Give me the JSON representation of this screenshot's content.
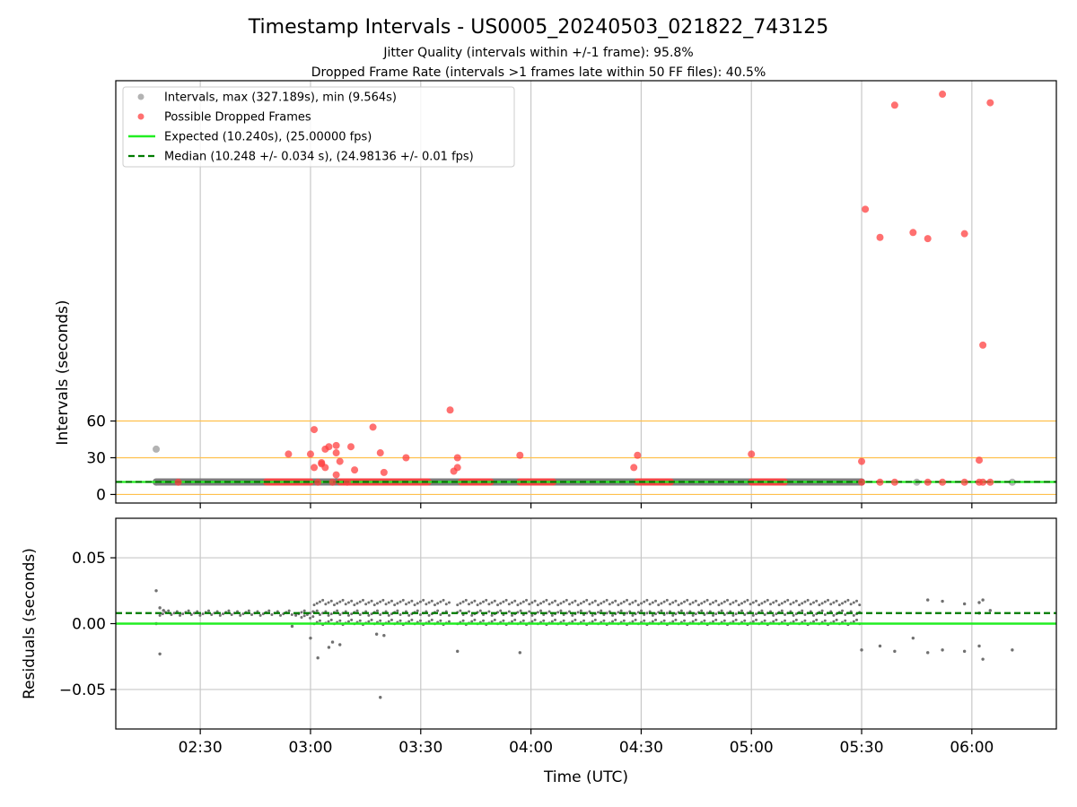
{
  "figure": {
    "title": "Timestamp Intervals - US0005_20240503_021822_743125",
    "subtitle_1": "Jitter Quality (intervals within +/-1 frame): 95.8%",
    "subtitle_2": "Dropped Frame Rate (intervals >1 frames late within 50 FF files): 40.5%",
    "xlabel": "Time (UTC)"
  },
  "colors": {
    "normal_points": "#808080",
    "dropped_points": "#ff4040",
    "expected_line": "#22ee22",
    "median_line": "#007a00",
    "threshold_lines": "#ffc04d",
    "grid": "#c8c8c8",
    "residual_points": "#707070"
  },
  "chart_data": [
    {
      "id": "intervals",
      "type": "scatter",
      "ylabel": "Intervals (seconds)",
      "xlim": [
        "02:07",
        "06:23"
      ],
      "ylim": [
        -7,
        338
      ],
      "x_ticks": [
        "02:30",
        "03:00",
        "03:30",
        "04:00",
        "04:30",
        "05:00",
        "05:30",
        "06:00"
      ],
      "y_ticks": [
        "0",
        "30",
        "60"
      ],
      "y_tick_values": [
        0,
        30,
        60
      ],
      "threshold_lines": [
        0,
        30,
        60
      ],
      "grid": true,
      "legend_position": "top-left",
      "legend": [
        "Intervals, max (327.189s), min (9.564s)",
        "Possible Dropped Frames",
        "Expected (10.240s), (25.00000 fps)",
        "Median (10.248 +/- 0.034 s), (24.98136 +/- 0.01 fps)"
      ],
      "expected": 10.24,
      "median": 10.248,
      "normal_bands": [
        [
          "02:18",
          "03:08"
        ],
        [
          "03:08",
          "05:30"
        ]
      ],
      "normal_points": [
        {
          "x": "02:18",
          "y": 37
        },
        {
          "x": "02:18",
          "y": 10
        },
        {
          "x": "05:45",
          "y": 10
        },
        {
          "x": "06:11",
          "y": 10
        }
      ],
      "dropped_bands": [
        [
          "02:48",
          "03:00"
        ],
        [
          "03:08",
          "03:32"
        ],
        [
          "03:41",
          "03:49"
        ],
        [
          "03:57",
          "04:06"
        ],
        [
          "04:29",
          "04:38"
        ],
        [
          "05:00",
          "05:09"
        ]
      ],
      "dropped_points": [
        {
          "x": "02:24",
          "y": 10
        },
        {
          "x": "02:54",
          "y": 33
        },
        {
          "x": "03:00",
          "y": 33
        },
        {
          "x": "03:01",
          "y": 53
        },
        {
          "x": "03:01",
          "y": 22
        },
        {
          "x": "03:02",
          "y": 10
        },
        {
          "x": "03:03",
          "y": 26
        },
        {
          "x": "03:03",
          "y": 25
        },
        {
          "x": "03:04",
          "y": 37
        },
        {
          "x": "03:04",
          "y": 22
        },
        {
          "x": "03:05",
          "y": 39
        },
        {
          "x": "03:06",
          "y": 10
        },
        {
          "x": "03:07",
          "y": 16
        },
        {
          "x": "03:07",
          "y": 34
        },
        {
          "x": "03:07",
          "y": 40
        },
        {
          "x": "03:08",
          "y": 27
        },
        {
          "x": "03:10",
          "y": 10
        },
        {
          "x": "03:11",
          "y": 39
        },
        {
          "x": "03:12",
          "y": 20
        },
        {
          "x": "03:17",
          "y": 55
        },
        {
          "x": "03:19",
          "y": 34
        },
        {
          "x": "03:20",
          "y": 18
        },
        {
          "x": "03:26",
          "y": 30
        },
        {
          "x": "03:38",
          "y": 69
        },
        {
          "x": "03:39",
          "y": 19
        },
        {
          "x": "03:40",
          "y": 22
        },
        {
          "x": "03:40",
          "y": 30
        },
        {
          "x": "03:57",
          "y": 32
        },
        {
          "x": "04:28",
          "y": 22
        },
        {
          "x": "04:29",
          "y": 32
        },
        {
          "x": "05:00",
          "y": 33
        },
        {
          "x": "05:30",
          "y": 27
        },
        {
          "x": "05:30",
          "y": 10
        },
        {
          "x": "05:31",
          "y": 233
        },
        {
          "x": "05:35",
          "y": 10
        },
        {
          "x": "05:35",
          "y": 210
        },
        {
          "x": "05:39",
          "y": 10
        },
        {
          "x": "05:39",
          "y": 318
        },
        {
          "x": "05:44",
          "y": 214
        },
        {
          "x": "05:48",
          "y": 10
        },
        {
          "x": "05:48",
          "y": 209
        },
        {
          "x": "05:52",
          "y": 10
        },
        {
          "x": "05:52",
          "y": 327
        },
        {
          "x": "05:58",
          "y": 10
        },
        {
          "x": "05:58",
          "y": 213
        },
        {
          "x": "06:02",
          "y": 28
        },
        {
          "x": "06:02",
          "y": 10
        },
        {
          "x": "06:03",
          "y": 10
        },
        {
          "x": "06:03",
          "y": 122
        },
        {
          "x": "06:05",
          "y": 10
        },
        {
          "x": "06:05",
          "y": 320
        }
      ]
    },
    {
      "id": "residuals",
      "type": "scatter",
      "ylabel": "Residuals (seconds)",
      "xlim": [
        "02:07",
        "06:23"
      ],
      "ylim": [
        -0.08,
        0.08
      ],
      "x_ticks": [
        "02:30",
        "03:00",
        "03:30",
        "04:00",
        "04:30",
        "05:00",
        "05:30",
        "06:00"
      ],
      "y_ticks": [
        "0.05",
        "0.00",
        "−0.05"
      ],
      "y_tick_values": [
        0.05,
        0.0,
        -0.05
      ],
      "grid": true,
      "expected": 0.0,
      "median": 0.008,
      "dense_bands": [
        {
          "from": "02:19",
          "to": "02:55",
          "levels": [
            0.008
          ]
        },
        {
          "from": "02:56",
          "to": "03:01",
          "levels": [
            0.008,
            0.006
          ]
        },
        {
          "from": "03:01",
          "to": "03:38",
          "levels": [
            0.016,
            0.008,
            0.001
          ]
        },
        {
          "from": "03:40",
          "to": "05:30",
          "levels": [
            0.016,
            0.008,
            0.001
          ]
        }
      ],
      "points": [
        {
          "x": "02:18",
          "y": 0.025
        },
        {
          "x": "02:18",
          "y": 0.0
        },
        {
          "x": "02:19",
          "y": -0.023
        },
        {
          "x": "02:19",
          "y": 0.012
        },
        {
          "x": "02:20",
          "y": 0.01
        },
        {
          "x": "02:55",
          "y": -0.002
        },
        {
          "x": "03:00",
          "y": -0.011
        },
        {
          "x": "03:02",
          "y": -0.026
        },
        {
          "x": "03:05",
          "y": -0.018
        },
        {
          "x": "03:06",
          "y": -0.014
        },
        {
          "x": "03:08",
          "y": -0.016
        },
        {
          "x": "03:18",
          "y": -0.008
        },
        {
          "x": "03:19",
          "y": -0.056
        },
        {
          "x": "03:20",
          "y": -0.009
        },
        {
          "x": "03:40",
          "y": -0.021
        },
        {
          "x": "03:57",
          "y": -0.022
        },
        {
          "x": "05:30",
          "y": -0.02
        },
        {
          "x": "05:35",
          "y": -0.017
        },
        {
          "x": "05:39",
          "y": -0.021
        },
        {
          "x": "05:44",
          "y": -0.011
        },
        {
          "x": "05:48",
          "y": 0.018
        },
        {
          "x": "05:48",
          "y": -0.022
        },
        {
          "x": "05:52",
          "y": 0.017
        },
        {
          "x": "05:52",
          "y": -0.02
        },
        {
          "x": "05:58",
          "y": 0.015
        },
        {
          "x": "05:58",
          "y": -0.021
        },
        {
          "x": "06:02",
          "y": 0.016
        },
        {
          "x": "06:02",
          "y": 0.008
        },
        {
          "x": "06:03",
          "y": 0.018
        },
        {
          "x": "06:03",
          "y": -0.027
        },
        {
          "x": "06:02",
          "y": -0.017
        },
        {
          "x": "06:05",
          "y": 0.01
        },
        {
          "x": "06:11",
          "y": -0.02
        }
      ]
    }
  ]
}
